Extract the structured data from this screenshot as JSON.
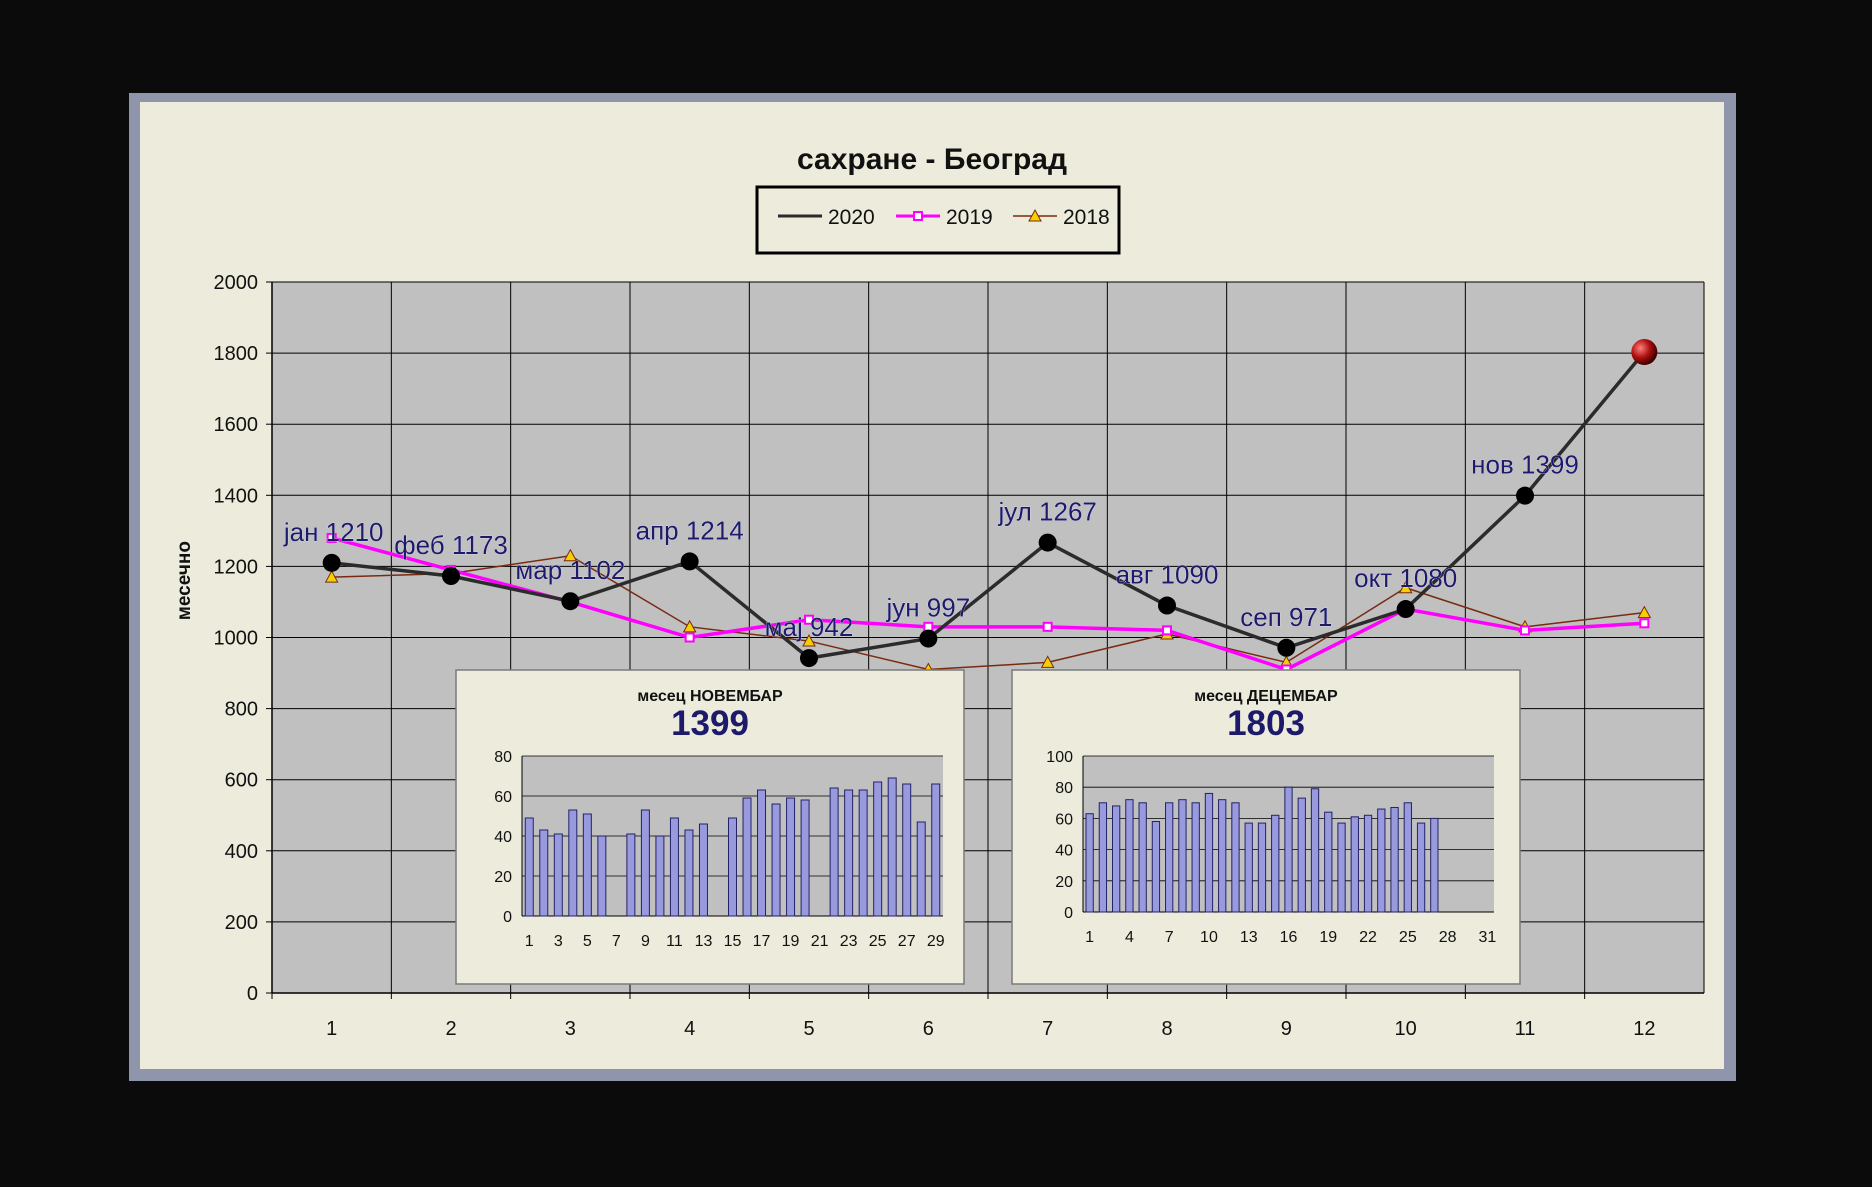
{
  "chart_data": {
    "main": {
      "type": "line",
      "title": "сахране - Београд",
      "ylabel": "месечно",
      "xlabel": "",
      "ylim": [
        0,
        2000
      ],
      "yticks": [
        0,
        200,
        400,
        600,
        800,
        1000,
        1200,
        1400,
        1600,
        1800,
        2000
      ],
      "categories": [
        "1",
        "2",
        "3",
        "4",
        "5",
        "6",
        "7",
        "8",
        "9",
        "10",
        "11",
        "12"
      ],
      "grid": true,
      "legend_position": "top-center",
      "series": [
        {
          "name": "2020",
          "color": "#2b2b2b",
          "values": [
            1210,
            1173,
            1102,
            1214,
            942,
            997,
            1267,
            1090,
            971,
            1080,
            1399,
            1803
          ]
        },
        {
          "name": "2019",
          "color": "#ff00ff",
          "values": [
            1280,
            1190,
            1100,
            1000,
            1050,
            1030,
            1030,
            1020,
            910,
            1080,
            1020,
            1040
          ]
        },
        {
          "name": "2018",
          "color": "#7a2a10",
          "values": [
            1170,
            1180,
            1230,
            1030,
            990,
            910,
            930,
            1010,
            930,
            1140,
            1030,
            1070
          ]
        }
      ],
      "point_labels": [
        "јан 1210",
        "феб 1173",
        "мар 1102",
        "апр 1214",
        "мај 942",
        "јун 997",
        "јул 1267",
        "авг 1090",
        "сеп 971",
        "окт 1080",
        "нов 1399",
        ""
      ],
      "highlight_point": {
        "index": 11,
        "value": 1803,
        "color": "#b01010"
      }
    },
    "insets": [
      {
        "type": "bar",
        "title": "месец НОВЕМБАР",
        "big_value": "1399",
        "ylim": [
          0,
          80
        ],
        "yticks": [
          0,
          20,
          40,
          60,
          80
        ],
        "days": 29,
        "xtick_labels": [
          "1",
          "3",
          "5",
          "7",
          "9",
          "11",
          "13",
          "15",
          "17",
          "19",
          "21",
          "23",
          "25",
          "27",
          "29"
        ],
        "values": [
          49,
          43,
          41,
          53,
          51,
          40,
          0,
          41,
          53,
          40,
          49,
          43,
          46,
          0,
          49,
          59,
          63,
          56,
          59,
          58,
          0,
          64,
          63,
          63,
          67,
          69,
          66,
          47,
          66
        ]
      },
      {
        "type": "bar",
        "title": "месец ДЕЦЕМБАР",
        "big_value": "1803",
        "ylim": [
          0,
          100
        ],
        "yticks": [
          0,
          20,
          40,
          60,
          80,
          100
        ],
        "days": 31,
        "xtick_labels": [
          "1",
          "4",
          "7",
          "10",
          "13",
          "16",
          "19",
          "22",
          "25",
          "28",
          "31"
        ],
        "values": [
          63,
          70,
          68,
          72,
          70,
          58,
          70,
          72,
          70,
          76,
          72,
          70,
          57,
          57,
          62,
          80,
          73,
          79,
          64,
          57,
          61,
          62,
          66,
          67,
          70,
          57,
          60,
          0,
          0,
          0,
          0
        ]
      }
    ]
  }
}
